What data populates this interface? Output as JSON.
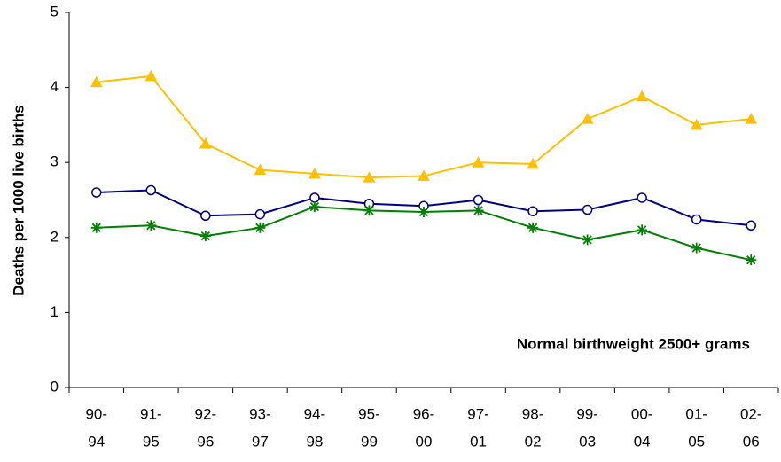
{
  "chart_data": {
    "type": "line",
    "y_label": "Deaths per 1000 live births",
    "annotation": "Normal birthweight 2500+ grams",
    "categories": [
      [
        "90-",
        "94"
      ],
      [
        "91-",
        "95"
      ],
      [
        "92-",
        "96"
      ],
      [
        "93-",
        "97"
      ],
      [
        "94-",
        "98"
      ],
      [
        "95-",
        "99"
      ],
      [
        "96-",
        "00"
      ],
      [
        "97-",
        "01"
      ],
      [
        "98-",
        "02"
      ],
      [
        "99-",
        "03"
      ],
      [
        "00-",
        "04"
      ],
      [
        "01-",
        "05"
      ],
      [
        "02-",
        "06"
      ]
    ],
    "series": [
      {
        "color": "#ffc000",
        "marker": "triangle",
        "values": [
          4.07,
          4.15,
          3.25,
          2.9,
          2.85,
          2.8,
          2.82,
          3.0,
          2.98,
          3.58,
          3.88,
          3.5,
          3.58
        ]
      },
      {
        "color": "#000080",
        "marker": "circle",
        "values": [
          2.6,
          2.63,
          2.29,
          2.31,
          2.53,
          2.45,
          2.42,
          2.5,
          2.35,
          2.37,
          2.53,
          2.24,
          2.16
        ]
      },
      {
        "color": "#008000",
        "marker": "asterisk",
        "values": [
          2.13,
          2.16,
          2.02,
          2.13,
          2.41,
          2.36,
          2.34,
          2.36,
          2.13,
          1.97,
          2.1,
          1.86,
          1.7
        ]
      }
    ],
    "ylim": [
      0,
      5
    ],
    "yticks": [
      0,
      1,
      2,
      3,
      4,
      5
    ],
    "grid": false
  }
}
